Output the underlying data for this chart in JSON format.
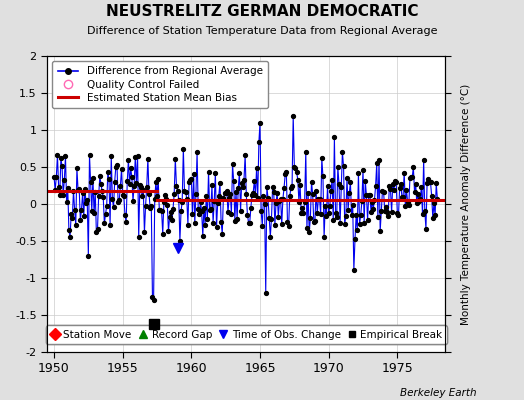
{
  "title": "NEUSTRELITZ GERMAN DEMOCRATIC",
  "subtitle": "Difference of Station Temperature Data from Regional Average",
  "ylabel": "Monthly Temperature Anomaly Difference (°C)",
  "xlabel_years": [
    1950,
    1955,
    1960,
    1965,
    1970,
    1975
  ],
  "ylim": [
    -2,
    2
  ],
  "xlim": [
    1949.5,
    1978.5
  ],
  "bias_line_color": "#cc0000",
  "data_line_color": "#0000ee",
  "data_marker_color": "#000000",
  "background_color": "#e0e0e0",
  "plot_bg_color": "#ffffff",
  "berkeley_earth_text": "Berkeley Earth",
  "legend1_labels": [
    "Difference from Regional Average",
    "Quality Control Failed",
    "Estimated Station Mean Bias"
  ],
  "legend2_labels": [
    "Station Move",
    "Record Gap",
    "Time of Obs. Change",
    "Empirical Break"
  ],
  "time_of_obs_change_x": 1959.0,
  "time_of_obs_change_y": -0.6,
  "empirical_break_x": 1957.25,
  "empirical_break_y": -1.62,
  "bias_line_y1": 0.18,
  "bias_line_y2": 0.05,
  "bias_break_x": 1957.5,
  "seed": 42
}
